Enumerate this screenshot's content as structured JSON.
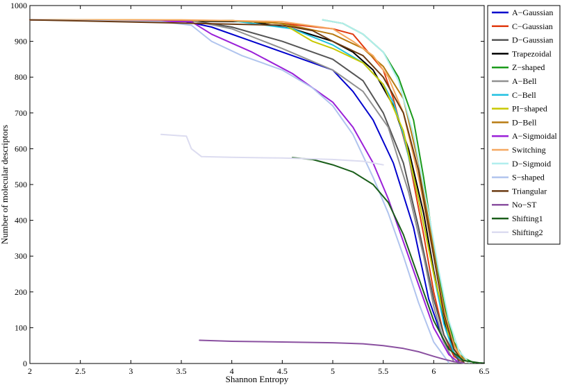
{
  "chart_data": {
    "type": "line",
    "title": "",
    "xlabel": "Shannon Entropy",
    "ylabel": "Number of molecular descriptors",
    "xlim": [
      2,
      6.5
    ],
    "ylim": [
      0,
      1000
    ],
    "xticks": [
      "2",
      "2.5",
      "3",
      "3.5",
      "4",
      "4.5",
      "5",
      "5.5",
      "6",
      "6.5"
    ],
    "yticks": [
      "0",
      "100",
      "200",
      "300",
      "400",
      "500",
      "600",
      "700",
      "800",
      "900",
      "1000"
    ],
    "grid": false,
    "legend_position": "outside-right",
    "series": [
      {
        "name": "A−Gaussian",
        "color": "#0000cc",
        "x": [
          2.0,
          3.5,
          3.8,
          4.2,
          4.6,
          5.0,
          5.2,
          5.4,
          5.6,
          5.8,
          5.95,
          6.1,
          6.25,
          6.3
        ],
        "y": [
          960,
          958,
          940,
          900,
          860,
          820,
          760,
          680,
          560,
          380,
          180,
          60,
          10,
          2
        ]
      },
      {
        "name": "C−Gaussian",
        "color": "#e03a10",
        "x": [
          2.0,
          4.0,
          4.5,
          5.0,
          5.2,
          5.35,
          5.5,
          5.6,
          5.75,
          5.9,
          6.0,
          6.1,
          6.2,
          6.3
        ],
        "y": [
          960,
          958,
          950,
          935,
          920,
          870,
          820,
          740,
          580,
          360,
          200,
          80,
          20,
          2
        ]
      },
      {
        "name": "D−Gaussian",
        "color": "#555555",
        "x": [
          2.0,
          3.6,
          4.0,
          4.5,
          5.0,
          5.3,
          5.5,
          5.7,
          5.85,
          6.0,
          6.1,
          6.25
        ],
        "y": [
          960,
          958,
          940,
          900,
          850,
          790,
          700,
          560,
          380,
          180,
          80,
          5
        ]
      },
      {
        "name": "Trapezoidal",
        "color": "#000000",
        "x": [
          2.0,
          4.2,
          4.6,
          5.0,
          5.2,
          5.4,
          5.6,
          5.75,
          5.9,
          6.0,
          6.1,
          6.2,
          6.3
        ],
        "y": [
          960,
          955,
          935,
          900,
          870,
          820,
          720,
          600,
          420,
          260,
          120,
          40,
          2
        ]
      },
      {
        "name": "Z−shaped",
        "color": "#1a9a1a",
        "x": [
          4.9,
          5.1,
          5.3,
          5.5,
          5.65,
          5.8,
          5.9,
          6.0,
          6.1,
          6.2,
          6.3,
          6.4
        ],
        "y": [
          960,
          950,
          920,
          870,
          800,
          680,
          520,
          330,
          170,
          60,
          15,
          2
        ]
      },
      {
        "name": "A−Bell",
        "color": "#909090",
        "x": [
          2.0,
          3.6,
          4.0,
          4.5,
          5.0,
          5.3,
          5.55,
          5.75,
          5.9,
          6.0,
          6.1,
          6.2
        ],
        "y": [
          960,
          958,
          935,
          880,
          820,
          760,
          660,
          480,
          300,
          160,
          60,
          5
        ]
      },
      {
        "name": "C−Bell",
        "color": "#20c0e0",
        "x": [
          2.0,
          4.0,
          4.6,
          5.0,
          5.3,
          5.5,
          5.6,
          5.7,
          5.85,
          6.0,
          6.1,
          6.2,
          6.3
        ],
        "y": [
          960,
          958,
          935,
          890,
          840,
          780,
          730,
          640,
          460,
          250,
          110,
          30,
          2
        ]
      },
      {
        "name": "PI−shaped",
        "color": "#c8c800",
        "x": [
          2.0,
          3.0,
          4.0,
          4.5,
          4.8,
          5.0,
          5.3,
          5.5,
          5.7,
          5.85,
          6.0,
          6.15,
          6.3
        ],
        "y": [
          960,
          960,
          958,
          950,
          900,
          880,
          840,
          780,
          650,
          460,
          250,
          80,
          2
        ]
      },
      {
        "name": "D−Bell",
        "color": "#b87a10",
        "x": [
          2.0,
          4.0,
          4.5,
          5.0,
          5.3,
          5.5,
          5.7,
          5.85,
          5.95,
          6.05,
          6.15,
          6.25,
          6.35
        ],
        "y": [
          960,
          958,
          950,
          920,
          880,
          830,
          740,
          560,
          400,
          230,
          90,
          25,
          2
        ]
      },
      {
        "name": "A−Sigmoidal",
        "color": "#9a20d8",
        "x": [
          2.0,
          3.6,
          3.8,
          4.2,
          4.6,
          5.0,
          5.2,
          5.4,
          5.55,
          5.7,
          5.85,
          6.0,
          6.15,
          6.25
        ],
        "y": [
          960,
          955,
          920,
          870,
          810,
          730,
          660,
          560,
          460,
          340,
          220,
          100,
          25,
          2
        ]
      },
      {
        "name": "Switching",
        "color": "#f5a860",
        "x": [
          2.0,
          3.5,
          4.0,
          4.5,
          5.0,
          5.2,
          5.4,
          5.55,
          5.7,
          5.85,
          6.0,
          6.1,
          6.2,
          6.3
        ],
        "y": [
          960,
          960,
          958,
          955,
          935,
          900,
          860,
          800,
          700,
          520,
          300,
          150,
          50,
          2
        ]
      },
      {
        "name": "D−Sigmoid",
        "color": "#b0eeee",
        "x": [
          4.9,
          5.1,
          5.3,
          5.5,
          5.65,
          5.8,
          5.95,
          6.05,
          6.15,
          6.25,
          6.35
        ],
        "y": [
          960,
          950,
          920,
          870,
          790,
          640,
          420,
          260,
          120,
          35,
          2
        ]
      },
      {
        "name": "S−shaped",
        "color": "#b0c4ee",
        "x": [
          2.0,
          3.3,
          3.6,
          3.8,
          4.1,
          4.5,
          4.8,
          5.0,
          5.2,
          5.4,
          5.55,
          5.7,
          5.85,
          6.0,
          6.15
        ],
        "y": [
          960,
          955,
          945,
          900,
          860,
          820,
          770,
          720,
          640,
          520,
          420,
          300,
          170,
          60,
          2
        ]
      },
      {
        "name": "Triangular",
        "color": "#6a3a12",
        "x": [
          2.0,
          4.5,
          4.8,
          5.0,
          5.3,
          5.5,
          5.7,
          5.85,
          6.0,
          6.1,
          6.2,
          6.3
        ],
        "y": [
          960,
          945,
          930,
          900,
          860,
          800,
          700,
          540,
          300,
          140,
          40,
          2
        ]
      },
      {
        "name": "No−ST",
        "color": "#8a50a0",
        "x": [
          3.68,
          4.0,
          4.5,
          5.0,
          5.3,
          5.5,
          5.7,
          5.85,
          6.0,
          6.1,
          6.2,
          6.3
        ],
        "y": [
          65,
          62,
          60,
          58,
          55,
          50,
          42,
          33,
          20,
          12,
          5,
          1
        ]
      },
      {
        "name": "Shifting1",
        "color": "#1a5e1a",
        "x": [
          4.6,
          4.8,
          5.0,
          5.2,
          5.4,
          5.55,
          5.7,
          5.85,
          6.0,
          6.15,
          6.3,
          6.45,
          6.5
        ],
        "y": [
          575,
          570,
          555,
          535,
          500,
          450,
          360,
          240,
          120,
          40,
          8,
          2,
          1
        ]
      },
      {
        "name": "Shifting2",
        "color": "#dcdcf0",
        "x": [
          3.3,
          3.55,
          3.6,
          3.7,
          4.0,
          4.5,
          5.0,
          5.3,
          5.5
        ],
        "y": [
          640,
          635,
          600,
          578,
          576,
          574,
          570,
          565,
          555
        ]
      }
    ]
  }
}
